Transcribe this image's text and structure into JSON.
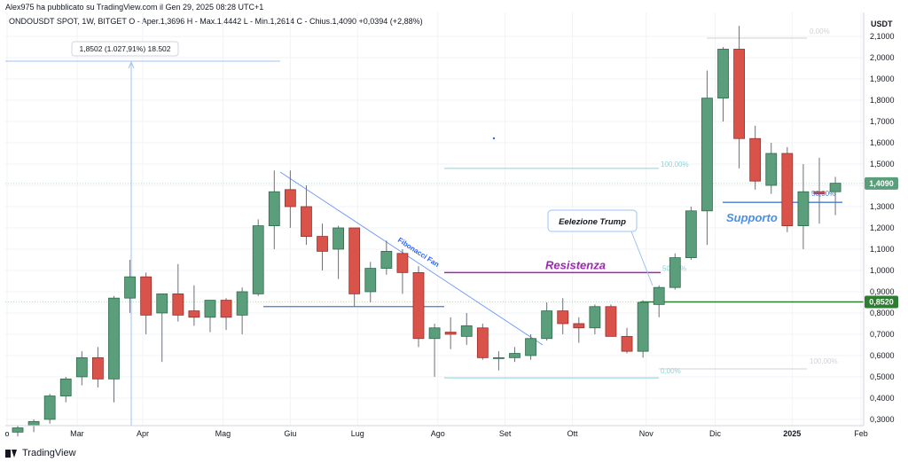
{
  "header": {
    "published_by": "Alex975 ha pubblicato su TradingView.com il Gen 29, 2025 08:28 UTC+1",
    "symbol_line_prefix": "ONDOUSDT SPOT, 1W, BITGET",
    "ohlc": "O - Aper.1,3696  H - Max.1,4442  L - Min.1,2614  C - Chius.1,4090 +0,0394 (+2,88%)"
  },
  "currency": "USDT",
  "footer": {
    "brand": "TradingView"
  },
  "colors": {
    "up": "#5b9e7c",
    "down": "#d9534b",
    "up_stroke": "#2e6b4b",
    "down_stroke": "#9a2f28",
    "resistance": "#9c27b0",
    "support_line": "#2e7d32",
    "fib_line": "#2962ff",
    "label_blue": "#4a8fe7"
  },
  "chart_data": {
    "type": "candlestick",
    "timeframe": "1W",
    "ylim": [
      0.22,
      2.2
    ],
    "yticks": [
      "0,3000",
      "0,4000",
      "0,5000",
      "0,6000",
      "0,7000",
      "0,8000",
      "0,9000",
      "1,0000",
      "1,1000",
      "1,2000",
      "1,3000",
      "1,4000",
      "1,5000",
      "1,6000",
      "1,7000",
      "1,8000",
      "1,9000",
      "2,0000",
      "2,1000"
    ],
    "xticks": [
      "o",
      "Mar",
      "Apr",
      "Mag",
      "Giu",
      "Lug",
      "Ago",
      "Set",
      "Ott",
      "Nov",
      "Dic",
      "2025",
      "Feb"
    ],
    "candles": [
      {
        "o": 0.24,
        "h": 0.27,
        "l": 0.22,
        "c": 0.26
      },
      {
        "o": 0.27,
        "h": 0.3,
        "l": 0.24,
        "c": 0.29
      },
      {
        "o": 0.3,
        "h": 0.42,
        "l": 0.28,
        "c": 0.41
      },
      {
        "o": 0.41,
        "h": 0.5,
        "l": 0.38,
        "c": 0.49
      },
      {
        "o": 0.5,
        "h": 0.62,
        "l": 0.46,
        "c": 0.59
      },
      {
        "o": 0.59,
        "h": 0.64,
        "l": 0.45,
        "c": 0.49
      },
      {
        "o": 0.49,
        "h": 0.88,
        "l": 0.38,
        "c": 0.87
      },
      {
        "o": 0.87,
        "h": 1.05,
        "l": 0.8,
        "c": 0.97
      },
      {
        "o": 0.97,
        "h": 0.99,
        "l": 0.7,
        "c": 0.79
      },
      {
        "o": 0.8,
        "h": 0.88,
        "l": 0.57,
        "c": 0.89
      },
      {
        "o": 0.89,
        "h": 1.03,
        "l": 0.76,
        "c": 0.79
      },
      {
        "o": 0.81,
        "h": 0.93,
        "l": 0.74,
        "c": 0.78
      },
      {
        "o": 0.78,
        "h": 0.86,
        "l": 0.71,
        "c": 0.86
      },
      {
        "o": 0.86,
        "h": 0.87,
        "l": 0.72,
        "c": 0.78
      },
      {
        "o": 0.79,
        "h": 0.92,
        "l": 0.7,
        "c": 0.9
      },
      {
        "o": 0.89,
        "h": 1.24,
        "l": 0.88,
        "c": 1.21
      },
      {
        "o": 1.21,
        "h": 1.47,
        "l": 1.1,
        "c": 1.37
      },
      {
        "o": 1.38,
        "h": 1.47,
        "l": 1.2,
        "c": 1.3
      },
      {
        "o": 1.3,
        "h": 1.4,
        "l": 1.12,
        "c": 1.16
      },
      {
        "o": 1.16,
        "h": 1.22,
        "l": 1.0,
        "c": 1.09
      },
      {
        "o": 1.1,
        "h": 1.21,
        "l": 0.96,
        "c": 1.2
      },
      {
        "o": 1.2,
        "h": 1.2,
        "l": 0.83,
        "c": 0.89
      },
      {
        "o": 0.9,
        "h": 1.04,
        "l": 0.85,
        "c": 1.01
      },
      {
        "o": 1.01,
        "h": 1.14,
        "l": 0.98,
        "c": 1.09
      },
      {
        "o": 1.08,
        "h": 1.1,
        "l": 0.89,
        "c": 0.99
      },
      {
        "o": 0.99,
        "h": 1.02,
        "l": 0.64,
        "c": 0.68
      },
      {
        "o": 0.68,
        "h": 0.75,
        "l": 0.5,
        "c": 0.73
      },
      {
        "o": 0.71,
        "h": 0.78,
        "l": 0.63,
        "c": 0.7
      },
      {
        "o": 0.69,
        "h": 0.8,
        "l": 0.65,
        "c": 0.74
      },
      {
        "o": 0.73,
        "h": 0.75,
        "l": 0.58,
        "c": 0.59
      },
      {
        "o": 0.59,
        "h": 0.62,
        "l": 0.53,
        "c": 0.59
      },
      {
        "o": 0.59,
        "h": 0.64,
        "l": 0.57,
        "c": 0.61
      },
      {
        "o": 0.6,
        "h": 0.7,
        "l": 0.58,
        "c": 0.68
      },
      {
        "o": 0.68,
        "h": 0.85,
        "l": 0.67,
        "c": 0.81
      },
      {
        "o": 0.81,
        "h": 0.87,
        "l": 0.7,
        "c": 0.75
      },
      {
        "o": 0.75,
        "h": 0.78,
        "l": 0.66,
        "c": 0.73
      },
      {
        "o": 0.73,
        "h": 0.84,
        "l": 0.7,
        "c": 0.83
      },
      {
        "o": 0.83,
        "h": 0.84,
        "l": 0.69,
        "c": 0.69
      },
      {
        "o": 0.69,
        "h": 0.73,
        "l": 0.61,
        "c": 0.62
      },
      {
        "o": 0.62,
        "h": 0.86,
        "l": 0.59,
        "c": 0.85
      },
      {
        "o": 0.84,
        "h": 0.93,
        "l": 0.78,
        "c": 0.92
      },
      {
        "o": 0.92,
        "h": 1.08,
        "l": 0.91,
        "c": 1.06
      },
      {
        "o": 1.06,
        "h": 1.3,
        "l": 1.05,
        "c": 1.28
      },
      {
        "o": 1.28,
        "h": 1.94,
        "l": 1.12,
        "c": 1.81
      },
      {
        "o": 1.81,
        "h": 2.05,
        "l": 1.7,
        "c": 2.04
      },
      {
        "o": 2.04,
        "h": 2.15,
        "l": 1.48,
        "c": 1.62
      },
      {
        "o": 1.62,
        "h": 1.68,
        "l": 1.38,
        "c": 1.42
      },
      {
        "o": 1.4,
        "h": 1.6,
        "l": 1.36,
        "c": 1.55
      },
      {
        "o": 1.55,
        "h": 1.58,
        "l": 1.18,
        "c": 1.21
      },
      {
        "o": 1.21,
        "h": 1.5,
        "l": 1.1,
        "c": 1.37
      },
      {
        "o": 1.37,
        "h": 1.53,
        "l": 1.22,
        "c": 1.36
      },
      {
        "o": 1.37,
        "h": 1.44,
        "l": 1.26,
        "c": 1.41
      }
    ],
    "annotations": {
      "measure_label": "1,8502 (1.027,91%) 18.502",
      "fib_fan_label": "Fibonacci Fan",
      "resistance_label": "Resistenza",
      "support_label": "Supporto",
      "callout_label": "Eelezione Trump",
      "fib_levels": {
        "p100_top": "100,00%",
        "p50": "50,00%",
        "p0": "0,00%",
        "p0_upper": "0,00%",
        "p100_lower": "100,00%"
      },
      "resistance_level": 0.99,
      "support_level": 0.852,
      "blue_level_left": 0.83,
      "blue_level_right": 1.32,
      "fib_top_level": 1.48,
      "fib_bottom_level": 0.495
    },
    "price_badges": [
      {
        "value": 1.409,
        "label": "1,4090",
        "color": "#5b9e7c"
      },
      {
        "value": 0.852,
        "label": "0,8520",
        "color": "#2e7d32"
      }
    ]
  }
}
